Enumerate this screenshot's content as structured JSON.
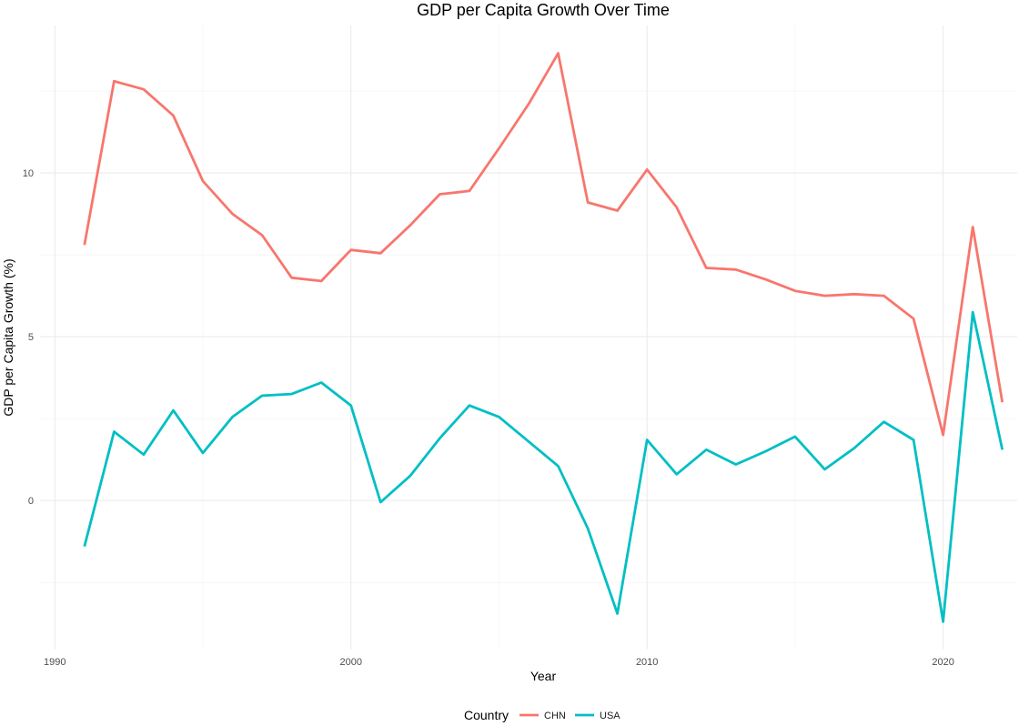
{
  "chart_data": {
    "type": "line",
    "title": "GDP per Capita Growth Over Time",
    "xlabel": "Year",
    "ylabel": "GDP per Capita Growth (%)",
    "xlim": [
      1989.5,
      2022.5
    ],
    "ylim": [
      -4.55,
      14.5
    ],
    "x_ticks": [
      1990,
      2000,
      2010,
      2020
    ],
    "y_ticks": [
      0,
      5,
      10
    ],
    "grid": true,
    "legend": {
      "title": "Country",
      "position": "bottom"
    },
    "x": [
      1991,
      1992,
      1993,
      1994,
      1995,
      1996,
      1997,
      1998,
      1999,
      2000,
      2001,
      2002,
      2003,
      2004,
      2005,
      2006,
      2007,
      2008,
      2009,
      2010,
      2011,
      2012,
      2013,
      2014,
      2015,
      2016,
      2017,
      2018,
      2019,
      2020,
      2021,
      2022
    ],
    "series": [
      {
        "name": "CHN",
        "color": "#F8766D",
        "values": [
          7.8,
          12.8,
          12.55,
          11.75,
          9.75,
          8.75,
          8.1,
          6.8,
          6.7,
          7.65,
          7.55,
          8.4,
          9.35,
          9.45,
          10.75,
          12.1,
          13.65,
          9.1,
          8.85,
          10.1,
          8.95,
          7.1,
          7.05,
          6.75,
          6.4,
          6.25,
          6.3,
          6.25,
          5.55,
          2.0,
          8.35,
          3.0
        ]
      },
      {
        "name": "USA",
        "color": "#00BFC4",
        "values": [
          -1.4,
          2.1,
          1.4,
          2.75,
          1.45,
          2.55,
          3.2,
          3.25,
          3.6,
          2.9,
          -0.05,
          0.75,
          1.9,
          2.9,
          2.55,
          1.8,
          1.05,
          -0.85,
          -3.45,
          1.85,
          0.8,
          1.55,
          1.1,
          1.5,
          1.95,
          0.95,
          1.6,
          2.4,
          1.85,
          -3.7,
          5.75,
          1.55
        ]
      }
    ]
  }
}
